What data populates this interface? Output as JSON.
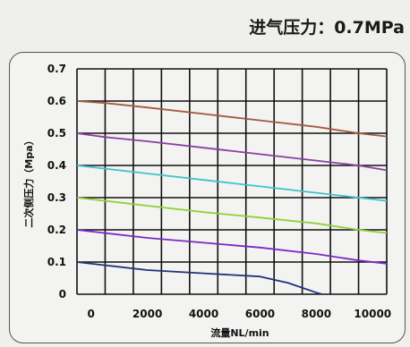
{
  "header": {
    "title": "进气压力：0.7MPa"
  },
  "chart_data": {
    "type": "line",
    "title": "进气压力：0.7MPa",
    "xlabel": "流量NL/min",
    "ylabel": "二次侧压力（Mpa）",
    "xlim": [
      -500,
      10500
    ],
    "ylim": [
      0,
      0.7
    ],
    "x_ticks": [
      "0",
      "2000",
      "4000",
      "6000",
      "8000",
      "10000"
    ],
    "x_tick_values": [
      0,
      2000,
      4000,
      6000,
      8000,
      10000
    ],
    "y_ticks": [
      "0",
      "0.1",
      "0.2",
      "0.3",
      "0.4",
      "0.5",
      "0.6",
      "0.7"
    ],
    "y_tick_values": [
      0,
      0.1,
      0.2,
      0.3,
      0.4,
      0.5,
      0.6,
      0.7
    ],
    "x_gridlines": [
      -500,
      500,
      1500,
      2500,
      3500,
      4500,
      5500,
      6500,
      7500,
      8500,
      9500,
      10500
    ],
    "grid": true,
    "legend": "none",
    "series": [
      {
        "color": "#a35a3c",
        "points": [
          [
            -500,
            0.6
          ],
          [
            500,
            0.594
          ],
          [
            2000,
            0.58
          ],
          [
            4000,
            0.56
          ],
          [
            6000,
            0.54
          ],
          [
            8000,
            0.52
          ],
          [
            9500,
            0.5
          ],
          [
            10500,
            0.49
          ]
        ]
      },
      {
        "color": "#8a3fa0",
        "points": [
          [
            -500,
            0.5
          ],
          [
            500,
            0.488
          ],
          [
            2000,
            0.475
          ],
          [
            4000,
            0.455
          ],
          [
            6000,
            0.435
          ],
          [
            8000,
            0.415
          ],
          [
            9500,
            0.4
          ],
          [
            10500,
            0.385
          ]
        ]
      },
      {
        "color": "#3fc3cf",
        "points": [
          [
            -500,
            0.4
          ],
          [
            500,
            0.39
          ],
          [
            2000,
            0.375
          ],
          [
            4000,
            0.355
          ],
          [
            6000,
            0.335
          ],
          [
            8000,
            0.315
          ],
          [
            9500,
            0.3
          ],
          [
            10500,
            0.29
          ]
        ]
      },
      {
        "color": "#8fd13a",
        "points": [
          [
            -500,
            0.3
          ],
          [
            500,
            0.29
          ],
          [
            2000,
            0.275
          ],
          [
            4000,
            0.255
          ],
          [
            6000,
            0.238
          ],
          [
            8000,
            0.22
          ],
          [
            9500,
            0.2
          ],
          [
            10500,
            0.19
          ]
        ]
      },
      {
        "color": "#7a2ac8",
        "points": [
          [
            -500,
            0.2
          ],
          [
            500,
            0.19
          ],
          [
            2000,
            0.175
          ],
          [
            4000,
            0.16
          ],
          [
            6000,
            0.145
          ],
          [
            8000,
            0.125
          ],
          [
            9500,
            0.105
          ],
          [
            10500,
            0.095
          ]
        ]
      },
      {
        "color": "#24307a",
        "points": [
          [
            -500,
            0.1
          ],
          [
            500,
            0.09
          ],
          [
            2000,
            0.075
          ],
          [
            4000,
            0.065
          ],
          [
            6000,
            0.055
          ],
          [
            7000,
            0.035
          ],
          [
            8000,
            0.005
          ],
          [
            8200,
            0.0
          ]
        ]
      }
    ]
  }
}
